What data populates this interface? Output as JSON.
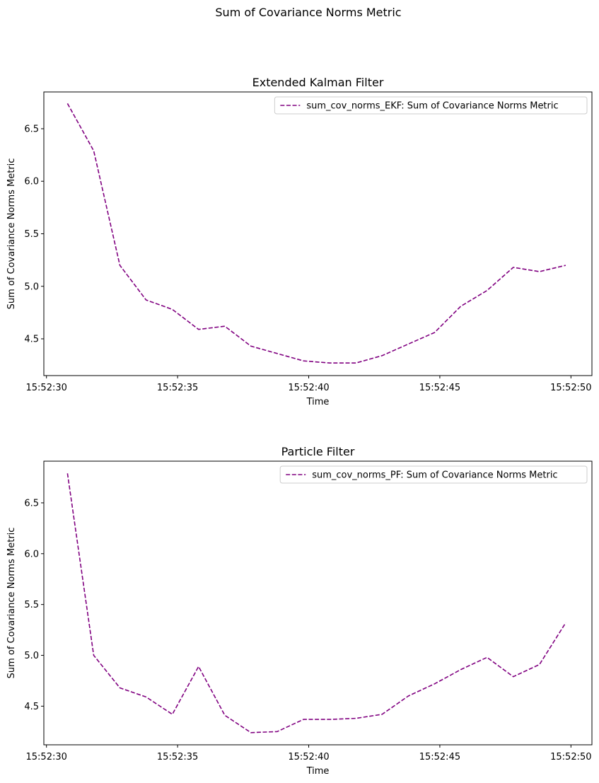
{
  "figure": {
    "suptitle": "Sum of Covariance Norms Metric"
  },
  "chart_data": [
    {
      "type": "line",
      "title": "Extended Kalman Filter",
      "xlabel": "Time",
      "ylabel": "Sum of Covariance Norms Metric",
      "x_start": "15:52:30.8",
      "x_step_seconds": 1,
      "xlim": [
        "15:52:29.9",
        "15:52:50.8"
      ],
      "ylim": [
        4.15,
        6.85
      ],
      "x_ticks": [
        "15:52:30",
        "15:52:35",
        "15:52:40",
        "15:52:45",
        "15:52:50"
      ],
      "y_ticks": [
        "4.5",
        "5.0",
        "5.5",
        "6.0",
        "6.5"
      ],
      "legend_position": "upper right",
      "series": [
        {
          "name": "sum_cov_norms_EKF: Sum of Covariance Norms Metric",
          "color": "#800080",
          "style": "dashed",
          "x": [
            "15:52:30.8",
            "15:52:31.8",
            "15:52:32.8",
            "15:52:33.8",
            "15:52:34.8",
            "15:52:35.8",
            "15:52:36.8",
            "15:52:37.8",
            "15:52:38.8",
            "15:52:39.8",
            "15:52:40.8",
            "15:52:41.8",
            "15:52:42.8",
            "15:52:43.8",
            "15:52:44.8",
            "15:52:45.8",
            "15:52:46.8",
            "15:52:47.8",
            "15:52:48.8",
            "15:52:49.8"
          ],
          "values": [
            6.74,
            6.29,
            5.2,
            4.87,
            4.78,
            4.59,
            4.62,
            4.43,
            4.36,
            4.29,
            4.27,
            4.27,
            4.34,
            4.45,
            4.56,
            4.81,
            4.96,
            5.18,
            5.14,
            5.2
          ]
        }
      ]
    },
    {
      "type": "line",
      "title": "Particle Filter",
      "xlabel": "Time",
      "ylabel": "Sum of Covariance Norms Metric",
      "x_start": "15:52:30.8",
      "x_step_seconds": 1,
      "xlim": [
        "15:52:29.9",
        "15:52:50.8"
      ],
      "ylim": [
        4.12,
        6.91
      ],
      "x_ticks": [
        "15:52:30",
        "15:52:35",
        "15:52:40",
        "15:52:45",
        "15:52:50"
      ],
      "y_ticks": [
        "4.5",
        "5.0",
        "5.5",
        "6.0",
        "6.5"
      ],
      "legend_position": "upper right",
      "series": [
        {
          "name": "sum_cov_norms_PF: Sum of Covariance Norms Metric",
          "color": "#800080",
          "style": "dashed",
          "x": [
            "15:52:30.8",
            "15:52:31.8",
            "15:52:32.8",
            "15:52:33.8",
            "15:52:34.8",
            "15:52:35.8",
            "15:52:36.8",
            "15:52:37.8",
            "15:52:38.8",
            "15:52:39.8",
            "15:52:40.8",
            "15:52:41.8",
            "15:52:42.8",
            "15:52:43.8",
            "15:52:44.8",
            "15:52:45.8",
            "15:52:46.8",
            "15:52:47.8",
            "15:52:48.8",
            "15:52:49.8"
          ],
          "values": [
            6.79,
            5.0,
            4.68,
            4.59,
            4.42,
            4.89,
            4.41,
            4.24,
            4.25,
            4.37,
            4.37,
            4.38,
            4.42,
            4.6,
            4.72,
            4.86,
            4.98,
            4.79,
            4.91,
            5.32
          ]
        }
      ]
    }
  ]
}
